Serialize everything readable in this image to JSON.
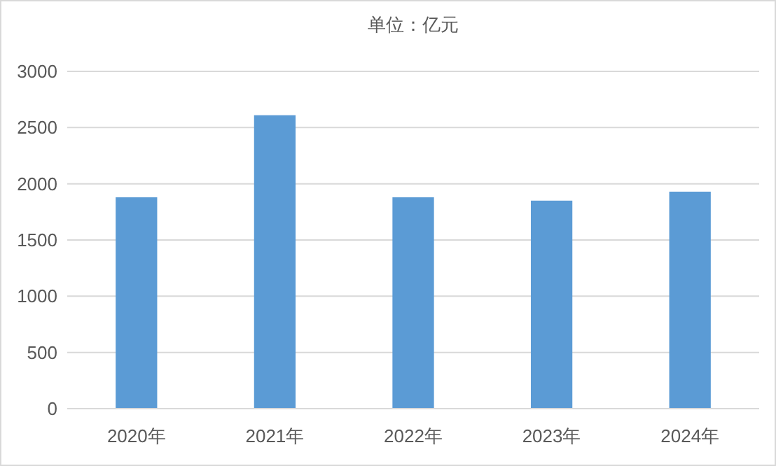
{
  "chart_data": {
    "type": "bar",
    "title": "单位：亿元",
    "categories": [
      "2020年",
      "2021年",
      "2022年",
      "2023年",
      "2024年"
    ],
    "values": [
      1880,
      2610,
      1880,
      1850,
      1930
    ],
    "color": "#5b9bd5",
    "ylim": [
      0,
      3000
    ],
    "yticks": [
      0,
      500,
      1000,
      1500,
      2000,
      2500,
      3000
    ],
    "grid": "y"
  }
}
